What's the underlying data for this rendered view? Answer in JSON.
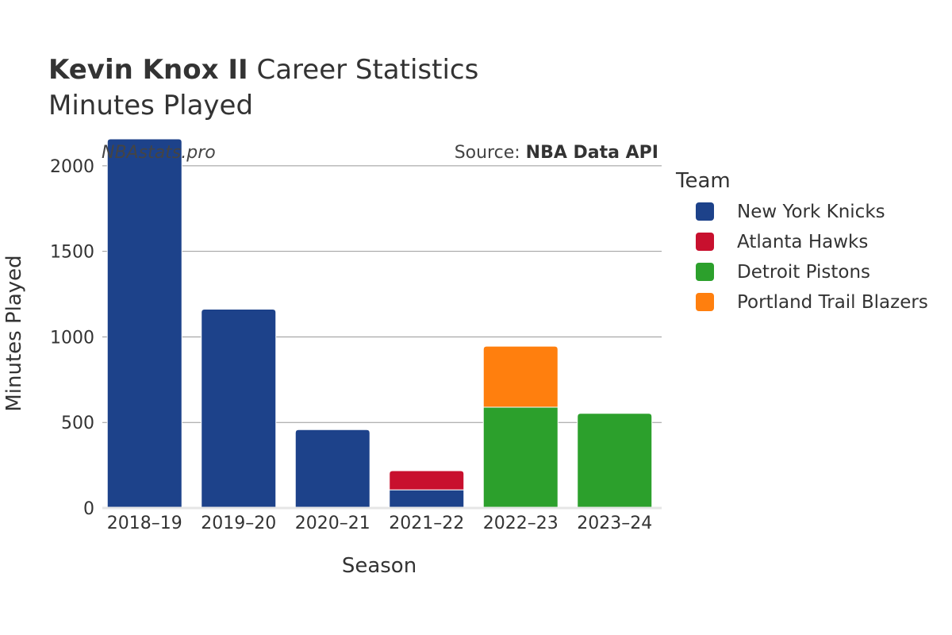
{
  "header": {
    "player_name": "Kevin Knox II",
    "title_suffix": "Career Statistics",
    "subtitle": "Minutes Played"
  },
  "watermark": "NBAstats.pro",
  "source": {
    "prefix": "Source: ",
    "name": "NBA Data API"
  },
  "legend": {
    "title": "Team",
    "items": [
      {
        "label": "New York Knicks",
        "color": "#1d428a"
      },
      {
        "label": "Atlanta Hawks",
        "color": "#c8102e"
      },
      {
        "label": "Detroit Pistons",
        "color": "#2ca02c"
      },
      {
        "label": "Portland Trail Blazers",
        "color": "#ff7f0e"
      }
    ]
  },
  "chart_data": {
    "type": "bar",
    "stacked": true,
    "title": "Kevin Knox II Career Statistics",
    "subtitle": "Minutes Played",
    "xlabel": "Season",
    "ylabel": "Minutes Played",
    "categories": [
      "2018–19",
      "2019–20",
      "2020–21",
      "2021–22",
      "2022–23",
      "2023–24"
    ],
    "ylim": [
      0,
      2250
    ],
    "yticks": [
      0,
      500,
      1000,
      1500,
      2000
    ],
    "grid": true,
    "legend_position": "right",
    "series": [
      {
        "name": "New York Knicks",
        "color": "#1d428a",
        "values": [
          2157,
          1162,
          458,
          106,
          0,
          0
        ]
      },
      {
        "name": "Atlanta Hawks",
        "color": "#c8102e",
        "values": [
          0,
          0,
          0,
          112,
          0,
          0
        ]
      },
      {
        "name": "Detroit Pistons",
        "color": "#2ca02c",
        "values": [
          0,
          0,
          0,
          0,
          589,
          553
        ]
      },
      {
        "name": "Portland Trail Blazers",
        "color": "#ff7f0e",
        "values": [
          0,
          0,
          0,
          0,
          357,
          0
        ]
      }
    ]
  }
}
